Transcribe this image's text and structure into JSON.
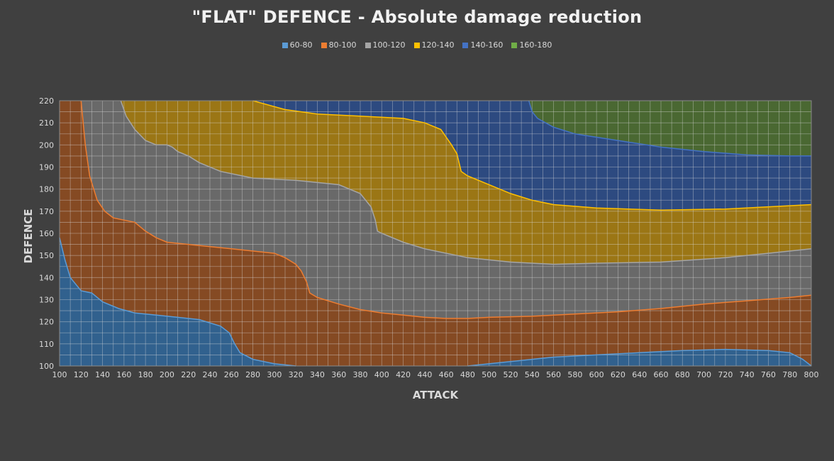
{
  "chart_data": {
    "type": "area",
    "title": "\"FLAT\" DEFENCE - Absolute damage reduction",
    "xlabel": "ATTACK",
    "ylabel": "DEFENCE",
    "xlim": [
      100,
      800
    ],
    "ylim": [
      100,
      220
    ],
    "x_ticks": [
      100,
      120,
      140,
      160,
      180,
      200,
      220,
      240,
      260,
      280,
      300,
      320,
      340,
      360,
      380,
      400,
      420,
      440,
      460,
      480,
      500,
      520,
      540,
      560,
      580,
      600,
      620,
      640,
      660,
      680,
      700,
      720,
      740,
      760,
      780,
      800
    ],
    "y_ticks": [
      100,
      110,
      120,
      130,
      140,
      150,
      160,
      170,
      180,
      190,
      200,
      210,
      220
    ],
    "grid": true,
    "legend_position": "top-center",
    "series": [
      {
        "name": "60-80",
        "color": "#5b9bd5"
      },
      {
        "name": "80-100",
        "color": "#ed7d31"
      },
      {
        "name": "100-120",
        "color": "#a5a5a5"
      },
      {
        "name": "120-140",
        "color": "#ffc000"
      },
      {
        "name": "140-160",
        "color": "#4472c4"
      },
      {
        "name": "160-180",
        "color": "#70ad47"
      }
    ],
    "contour_boundaries": [
      {
        "between": [
          "60-80",
          "80-100"
        ],
        "points": [
          [
            100,
            158
          ],
          [
            105,
            148
          ],
          [
            110,
            140
          ],
          [
            120,
            134
          ],
          [
            130,
            133
          ],
          [
            140,
            129
          ],
          [
            155,
            126
          ],
          [
            170,
            124
          ],
          [
            190,
            123
          ],
          [
            210,
            122
          ],
          [
            230,
            121
          ],
          [
            250,
            118
          ],
          [
            258,
            115
          ],
          [
            263,
            110
          ],
          [
            268,
            106
          ],
          [
            280,
            103
          ],
          [
            300,
            101
          ],
          [
            320,
            100
          ]
        ]
      },
      {
        "between": [
          "60-80",
          "80-100"
        ],
        "points": [
          [
            480,
            100
          ],
          [
            500,
            101
          ],
          [
            520,
            102
          ],
          [
            540,
            103
          ],
          [
            560,
            104
          ],
          [
            600,
            105
          ],
          [
            640,
            106
          ],
          [
            680,
            107
          ],
          [
            720,
            107.5
          ],
          [
            760,
            107
          ],
          [
            780,
            106
          ],
          [
            792,
            103
          ],
          [
            800,
            100
          ]
        ]
      },
      {
        "between": [
          "80-100",
          "100-120"
        ],
        "points": [
          [
            120,
            220
          ],
          [
            124,
            200
          ],
          [
            128,
            186
          ],
          [
            135,
            175
          ],
          [
            142,
            170
          ],
          [
            150,
            167
          ],
          [
            160,
            166
          ],
          [
            170,
            165
          ],
          [
            180,
            161
          ],
          [
            190,
            158
          ],
          [
            200,
            156
          ],
          [
            220,
            155
          ],
          [
            260,
            153
          ],
          [
            300,
            151
          ],
          [
            310,
            149
          ],
          [
            320,
            146
          ],
          [
            325,
            143
          ],
          [
            330,
            138
          ],
          [
            333,
            133
          ],
          [
            340,
            131
          ],
          [
            360,
            128
          ],
          [
            380,
            125.5
          ],
          [
            400,
            124
          ],
          [
            420,
            123
          ],
          [
            440,
            122
          ],
          [
            460,
            121.5
          ],
          [
            480,
            121.5
          ],
          [
            500,
            122
          ],
          [
            540,
            122.5
          ],
          [
            580,
            123.5
          ],
          [
            620,
            124.5
          ],
          [
            660,
            126
          ],
          [
            700,
            128
          ],
          [
            740,
            129.5
          ],
          [
            780,
            131
          ],
          [
            800,
            132
          ]
        ]
      },
      {
        "between": [
          "100-120",
          "120-140"
        ],
        "points": [
          [
            157,
            220
          ],
          [
            162,
            213
          ],
          [
            170,
            207
          ],
          [
            180,
            202
          ],
          [
            190,
            200
          ],
          [
            200,
            200
          ],
          [
            205,
            199
          ],
          [
            210,
            197
          ],
          [
            220,
            195
          ],
          [
            230,
            192
          ],
          [
            250,
            188
          ],
          [
            280,
            185
          ],
          [
            320,
            184
          ],
          [
            360,
            182
          ],
          [
            380,
            178
          ],
          [
            390,
            172
          ],
          [
            394,
            166
          ],
          [
            396,
            161
          ],
          [
            400,
            160
          ],
          [
            420,
            156
          ],
          [
            440,
            153
          ],
          [
            480,
            149
          ],
          [
            520,
            147
          ],
          [
            560,
            146
          ],
          [
            600,
            146.5
          ],
          [
            660,
            147
          ],
          [
            720,
            149
          ],
          [
            760,
            151
          ],
          [
            800,
            153
          ]
        ]
      },
      {
        "between": [
          "120-140",
          "140-160"
        ],
        "points": [
          [
            280,
            220
          ],
          [
            310,
            216
          ],
          [
            340,
            214
          ],
          [
            380,
            213
          ],
          [
            420,
            212
          ],
          [
            440,
            210
          ],
          [
            455,
            207
          ],
          [
            465,
            200
          ],
          [
            470,
            196
          ],
          [
            472,
            192
          ],
          [
            474,
            188
          ],
          [
            480,
            186
          ],
          [
            500,
            182
          ],
          [
            520,
            178
          ],
          [
            540,
            175
          ],
          [
            560,
            173
          ],
          [
            600,
            171.5
          ],
          [
            660,
            170.5
          ],
          [
            720,
            171
          ],
          [
            760,
            172
          ],
          [
            800,
            173
          ]
        ]
      },
      {
        "between": [
          "140-160",
          "160-180"
        ],
        "points": [
          [
            537,
            220
          ],
          [
            540,
            215
          ],
          [
            545,
            212
          ],
          [
            560,
            208
          ],
          [
            580,
            205
          ],
          [
            620,
            202
          ],
          [
            660,
            199
          ],
          [
            700,
            197
          ],
          [
            740,
            195.5
          ],
          [
            780,
            195
          ],
          [
            800,
            195
          ]
        ]
      }
    ],
    "region_labels": {
      "region_legend_order": [
        "60-80",
        "80-100",
        "100-120",
        "120-140",
        "140-160",
        "160-180"
      ]
    }
  }
}
